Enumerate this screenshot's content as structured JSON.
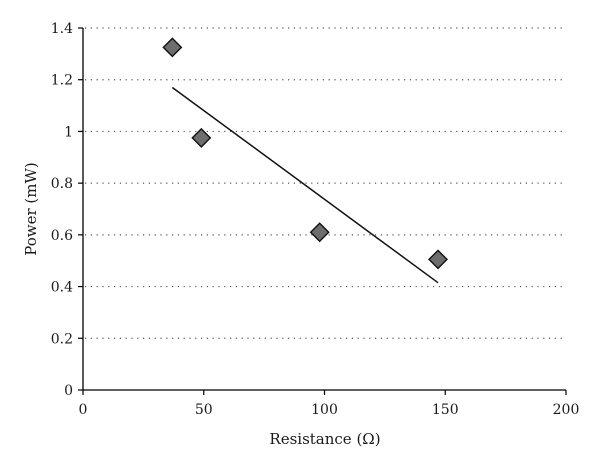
{
  "chart_data": {
    "type": "scatter",
    "title": "",
    "xlabel": "Resistance (Ω)",
    "ylabel": "Power (mW)",
    "xlim": [
      0,
      200
    ],
    "ylim": [
      0,
      1.4
    ],
    "xticks": [
      0,
      50,
      100,
      150,
      200
    ],
    "yticks": [
      0,
      0.2,
      0.4,
      0.6,
      0.8,
      1,
      1.2,
      1.4
    ],
    "xtick_labels": [
      "0",
      "50",
      "100",
      "150",
      "200"
    ],
    "ytick_labels": [
      "0",
      "0.2",
      "0.4",
      "0.6",
      "0.8",
      "1",
      "1.2",
      "1.4"
    ],
    "grid": "horizontal dotted",
    "marker": "diamond",
    "colors": {
      "marker_fill": "#6d6d6d",
      "marker_edge": "#111111",
      "trendline": "#111111"
    },
    "series": [
      {
        "x": [
          37,
          49,
          98,
          147
        ],
        "y": [
          1.325,
          0.975,
          0.61,
          0.505
        ]
      }
    ],
    "trendline": {
      "x": [
        37,
        147
      ],
      "y": [
        1.17,
        0.415
      ]
    }
  }
}
